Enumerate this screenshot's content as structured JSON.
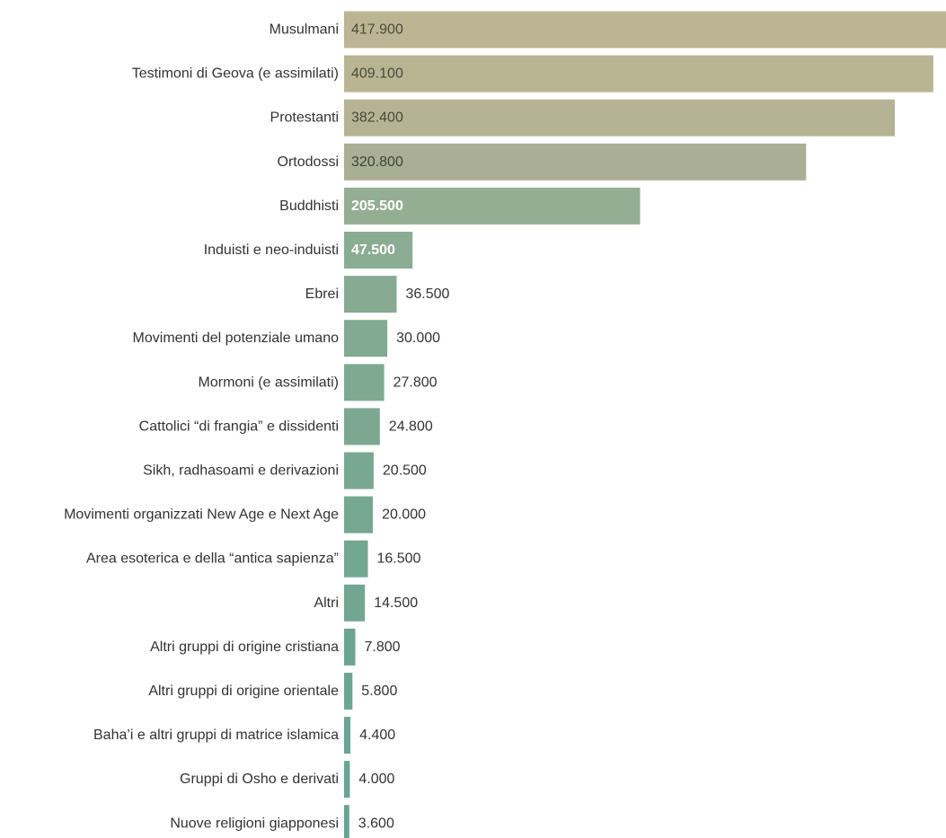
{
  "chart_data": {
    "type": "bar",
    "orientation": "horizontal",
    "categories": [
      "Musulmani",
      "Testimoni di Geova (e assimilati)",
      "Protestanti",
      "Ortodossi",
      "Buddhisti",
      "Induisti e neo-induisti",
      "Ebrei",
      "Movimenti del potenziale umano",
      "Mormoni (e assimilati)",
      "Cattolici “di frangia” e dissidenti",
      "Sikh, radhasoami e derivazioni",
      "Movimenti organizzati New Age e Next Age",
      "Area esoterica e della “antica sapienza”",
      "Altri",
      "Altri gruppi di origine cristiana",
      "Altri gruppi di origine orientale",
      "Baha’i e altri gruppi di matrice islamica",
      "Gruppi di Osho e derivati",
      "Nuove religioni giapponesi"
    ],
    "values": [
      417900,
      409100,
      382400,
      320800,
      205500,
      47500,
      36500,
      30000,
      27800,
      24800,
      20500,
      20000,
      16500,
      14500,
      7800,
      5800,
      4400,
      4000,
      3600
    ],
    "value_labels": [
      "417.900",
      "409.100",
      "382.400",
      "320.800",
      "205.500",
      "47.500",
      "36.500",
      "30.000",
      "27.800",
      "24.800",
      "20.500",
      "20.000",
      "16.500",
      "14.500",
      "7.800",
      "5.800",
      "4.400",
      "4.000",
      "3.600"
    ],
    "label_inside_bar": [
      true,
      true,
      true,
      true,
      true,
      true,
      false,
      false,
      false,
      false,
      false,
      false,
      false,
      false,
      false,
      false,
      false,
      false,
      false
    ],
    "label_inside_color": [
      "#4a4a3a",
      "#4a4a3a",
      "#4a4a3a",
      "#3d4438",
      "#ffffff",
      "#ffffff"
    ],
    "label_outside_color": "#333333",
    "xlim": [
      0,
      417900
    ],
    "grid": false,
    "legend": "none",
    "colors": [
      "#bbb594",
      "#b9b593",
      "#b5b394",
      "#aaae94",
      "#94ae93",
      "#8aac92",
      "#86ab92",
      "#82aa92",
      "#7fa991",
      "#7ca891",
      "#78a891",
      "#76a891",
      "#72a792",
      "#70a692",
      "#6ca692",
      "#6aa692",
      "#68a592",
      "#66a592",
      "#64a592"
    ]
  }
}
